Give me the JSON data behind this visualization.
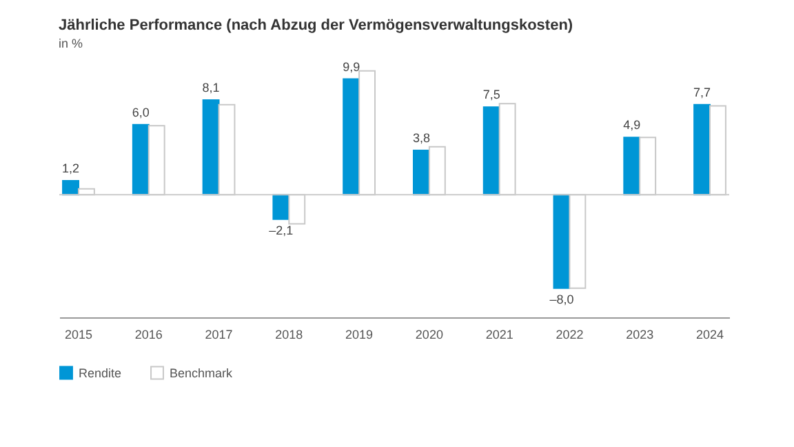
{
  "chart_data": {
    "type": "bar",
    "title": "Jährliche Performance (nach Abzug der Vermögensverwaltungskosten)",
    "subtitle": "in %",
    "categories": [
      "2015",
      "2016",
      "2017",
      "2018",
      "2019",
      "2020",
      "2021",
      "2022",
      "2023",
      "2024"
    ],
    "series": [
      {
        "name": "Rendite",
        "color": "#0096d6",
        "values": [
          1.2,
          6.0,
          8.1,
          -2.1,
          9.9,
          3.8,
          7.5,
          -8.0,
          4.9,
          7.7
        ],
        "value_labels": [
          "1,2",
          "6,0",
          "8,1",
          "–2,1",
          "9,9",
          "3,8",
          "7,5",
          "–8,0",
          "4,9",
          "7,7"
        ]
      },
      {
        "name": "Benchmark",
        "color": "#ffffff",
        "values": [
          0.5,
          5.9,
          7.7,
          -2.5,
          10.6,
          4.1,
          7.8,
          -8.0,
          4.9,
          7.6
        ]
      }
    ],
    "ylim": [
      -10.5,
      11
    ],
    "tick_labels": "x",
    "grid": false,
    "legend": "bottom left"
  }
}
